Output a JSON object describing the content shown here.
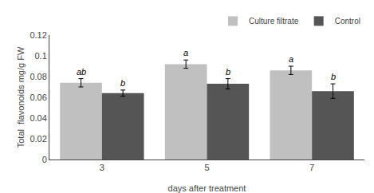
{
  "chart_data": {
    "type": "bar",
    "categories": [
      "3",
      "5",
      "7"
    ],
    "xlabel": "days after treatment",
    "ylabel": "Total  flavonoids mg/g FW",
    "series": [
      {
        "name": "Culture filtrate",
        "color": "#c0c0c0",
        "values": [
          0.074,
          0.092,
          0.086
        ],
        "errors": [
          0.004,
          0.004,
          0.004
        ],
        "annotations": [
          "ab",
          "a",
          "a"
        ]
      },
      {
        "name": "Control",
        "color": "#555555",
        "values": [
          0.064,
          0.073,
          0.066
        ],
        "errors": [
          0.003,
          0.005,
          0.007
        ],
        "annotations": [
          "b",
          "b",
          "b"
        ]
      }
    ],
    "ylim": [
      0,
      0.12
    ],
    "yticks": [
      0,
      0.02,
      0.04,
      0.06,
      0.08,
      0.1,
      0.12
    ],
    "grid": false,
    "legend": "upper right"
  }
}
